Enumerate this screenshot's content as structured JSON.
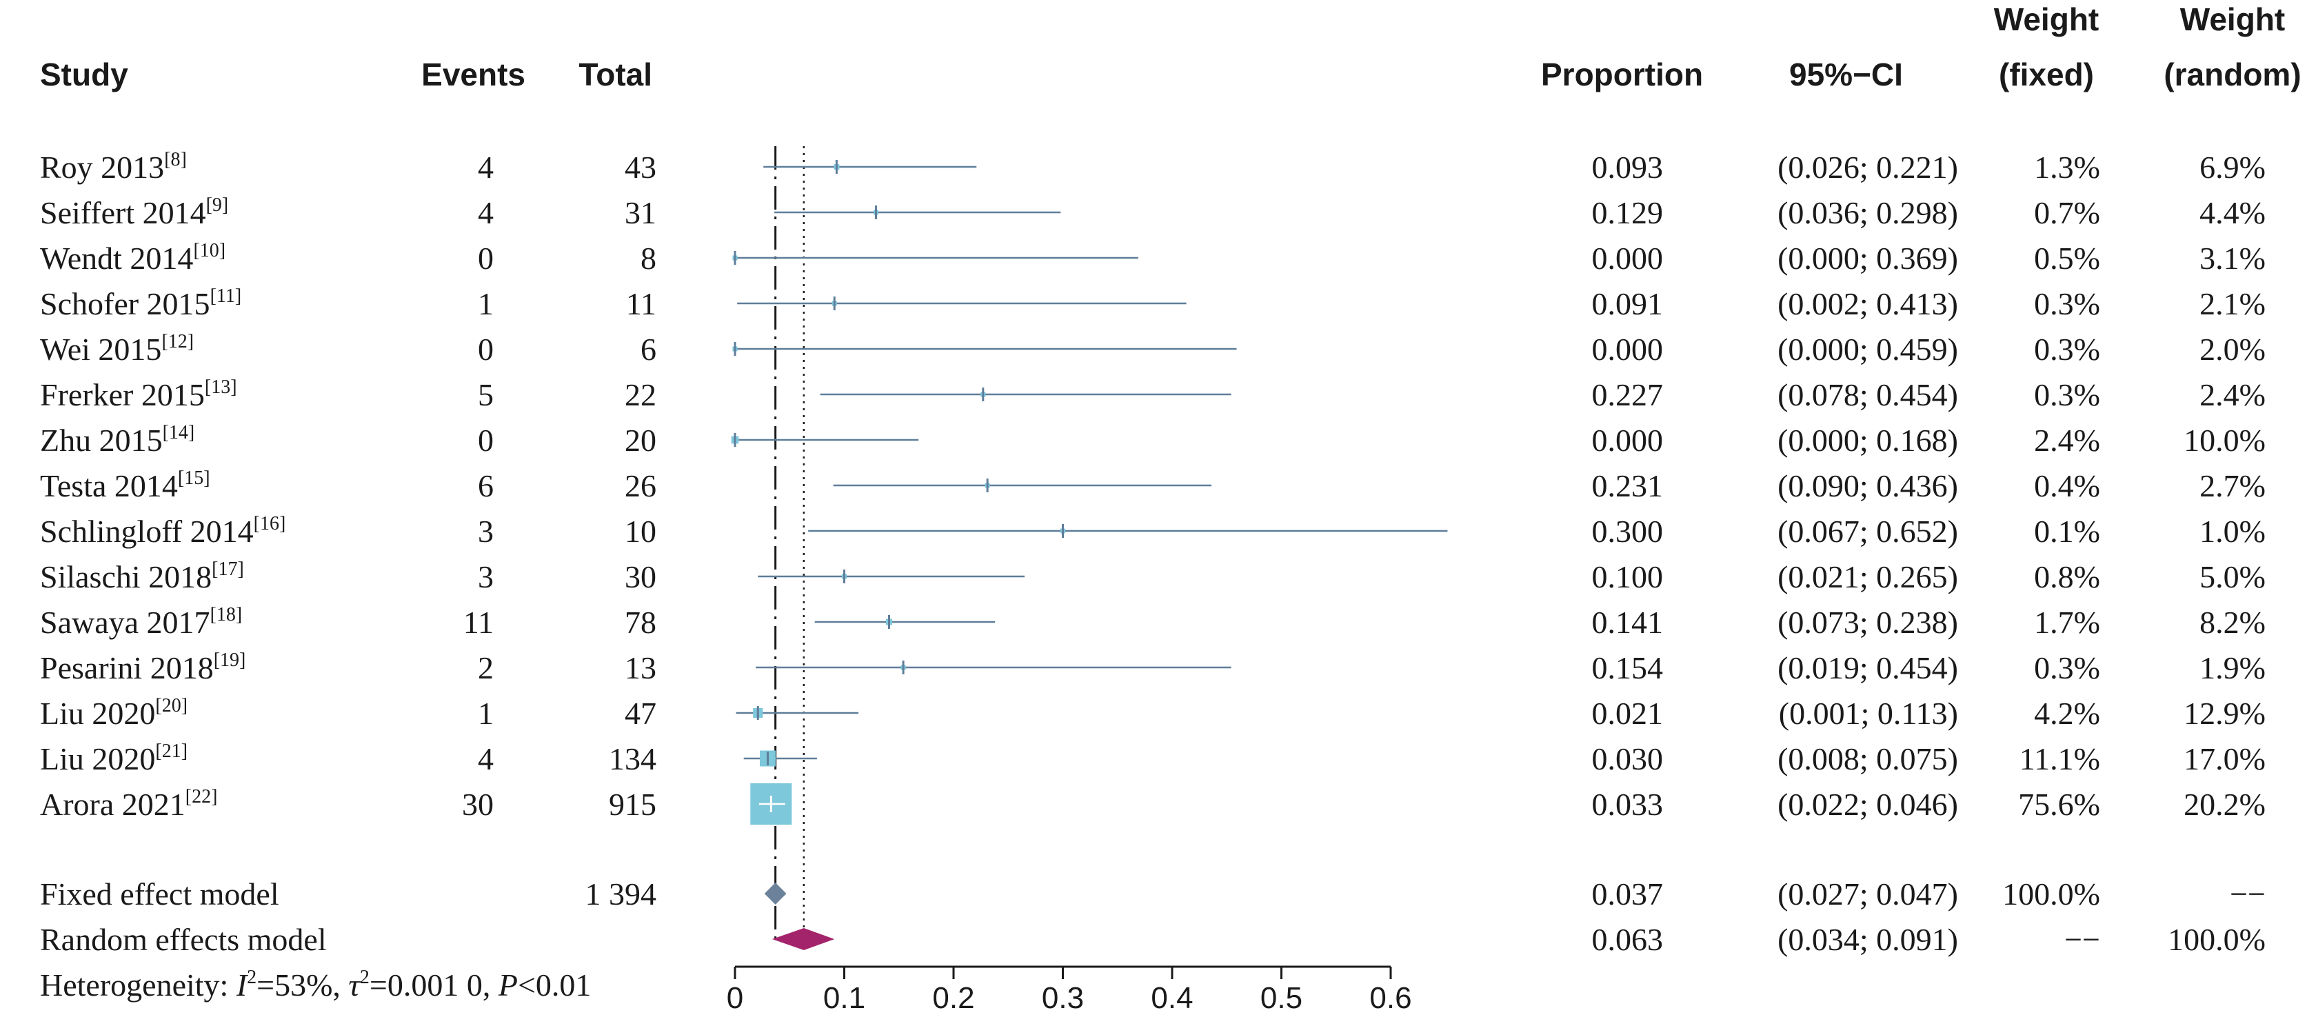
{
  "headers": {
    "study": "Study",
    "events": "Events",
    "total": "Total",
    "proportion": "Proportion",
    "ci": "95%−CI",
    "weight_fixed_1": "Weight",
    "weight_fixed_2": "(fixed)",
    "weight_random_1": "Weight",
    "weight_random_2": "(random)"
  },
  "studies": [
    {
      "name": "Roy 2013",
      "ref": "[8]",
      "events": "4",
      "total": "43",
      "proportion": "0.093",
      "ci": "(0.026; 0.221)",
      "w_fixed": "1.3%",
      "w_random": "6.9%"
    },
    {
      "name": "Seiffert 2014",
      "ref": "[9]",
      "events": "4",
      "total": "31",
      "proportion": "0.129",
      "ci": "(0.036; 0.298)",
      "w_fixed": "0.7%",
      "w_random": "4.4%"
    },
    {
      "name": "Wendt 2014",
      "ref": "[10]",
      "events": "0",
      "total": "8",
      "proportion": "0.000",
      "ci": "(0.000; 0.369)",
      "w_fixed": "0.5%",
      "w_random": "3.1%"
    },
    {
      "name": "Schofer 2015",
      "ref": "[11]",
      "events": "1",
      "total": "11",
      "proportion": "0.091",
      "ci": "(0.002; 0.413)",
      "w_fixed": "0.3%",
      "w_random": "2.1%"
    },
    {
      "name": "Wei 2015",
      "ref": "[12]",
      "events": "0",
      "total": "6",
      "proportion": "0.000",
      "ci": "(0.000; 0.459)",
      "w_fixed": "0.3%",
      "w_random": "2.0%"
    },
    {
      "name": "Frerker 2015",
      "ref": "[13]",
      "events": "5",
      "total": "22",
      "proportion": "0.227",
      "ci": "(0.078; 0.454)",
      "w_fixed": "0.3%",
      "w_random": "2.4%"
    },
    {
      "name": "Zhu 2015",
      "ref": "[14]",
      "events": "0",
      "total": "20",
      "proportion": "0.000",
      "ci": "(0.000; 0.168)",
      "w_fixed": "2.4%",
      "w_random": "10.0%"
    },
    {
      "name": "Testa 2014",
      "ref": "[15]",
      "events": "6",
      "total": "26",
      "proportion": "0.231",
      "ci": "(0.090; 0.436)",
      "w_fixed": "0.4%",
      "w_random": "2.7%"
    },
    {
      "name": "Schlingloff 2014",
      "ref": "[16]",
      "events": "3",
      "total": "10",
      "proportion": "0.300",
      "ci": "(0.067; 0.652)",
      "w_fixed": "0.1%",
      "w_random": "1.0%"
    },
    {
      "name": "Silaschi 2018",
      "ref": "[17]",
      "events": "3",
      "total": "30",
      "proportion": "0.100",
      "ci": "(0.021; 0.265)",
      "w_fixed": "0.8%",
      "w_random": "5.0%"
    },
    {
      "name": "Sawaya 2017",
      "ref": "[18]",
      "events": "11",
      "total": "78",
      "proportion": "0.141",
      "ci": "(0.073; 0.238)",
      "w_fixed": "1.7%",
      "w_random": "8.2%"
    },
    {
      "name": "Pesarini 2018",
      "ref": "[19]",
      "events": "2",
      "total": "13",
      "proportion": "0.154",
      "ci": "(0.019; 0.454)",
      "w_fixed": "0.3%",
      "w_random": "1.9%"
    },
    {
      "name": "Liu 2020",
      "ref": "[20]",
      "events": "1",
      "total": "47",
      "proportion": "0.021",
      "ci": "(0.001; 0.113)",
      "w_fixed": "4.2%",
      "w_random": "12.9%"
    },
    {
      "name": "Liu 2020",
      "ref": "[21]",
      "events": "4",
      "total": "134",
      "proportion": "0.030",
      "ci": "(0.008; 0.075)",
      "w_fixed": "11.1%",
      "w_random": "17.0%"
    },
    {
      "name": "Arora 2021",
      "ref": "[22]",
      "events": "30",
      "total": "915",
      "proportion": "0.033",
      "ci": "(0.022; 0.046)",
      "w_fixed": "75.6%",
      "w_random": "20.2%"
    }
  ],
  "fixed_model": {
    "label": "Fixed effect model",
    "total": "1 394",
    "proportion": "0.037",
    "ci": "(0.027; 0.047)",
    "w_fixed": "100.0%",
    "w_random": "−−"
  },
  "random_model": {
    "label": "Random effects model",
    "proportion": "0.063",
    "ci": "(0.034; 0.091)",
    "w_fixed": "−−",
    "w_random": "100.0%"
  },
  "heterogeneity": {
    "prefix": "Heterogeneity: ",
    "i2_sym": "I",
    "i2_val": "=53%, ",
    "tau_sym": "τ",
    "tau_val": "=0.001 0, ",
    "p_sym": "P",
    "p_val": "<0.01"
  },
  "colors": {
    "ci_line": "#5f7d99",
    "study_square": "#7ec8dc",
    "fixed_diamond": "#6c829a",
    "random_diamond": "#a3246b",
    "axis": "#1a1a1a"
  },
  "chart_data": {
    "type": "forest",
    "x": [
      0.093,
      0.129,
      0.0,
      0.091,
      0.0,
      0.227,
      0.0,
      0.231,
      0.3,
      0.1,
      0.141,
      0.154,
      0.021,
      0.03,
      0.033
    ],
    "ci_low": [
      0.026,
      0.036,
      0.0,
      0.002,
      0.0,
      0.078,
      0.0,
      0.09,
      0.067,
      0.021,
      0.073,
      0.019,
      0.001,
      0.008,
      0.022
    ],
    "ci_high": [
      0.221,
      0.298,
      0.369,
      0.413,
      0.459,
      0.454,
      0.168,
      0.436,
      0.652,
      0.265,
      0.238,
      0.454,
      0.113,
      0.075,
      0.046
    ],
    "weight_fixed": [
      1.3,
      0.7,
      0.5,
      0.3,
      0.3,
      0.3,
      2.4,
      0.4,
      0.1,
      0.8,
      1.7,
      0.3,
      4.2,
      11.1,
      75.6
    ],
    "fixed_estimate": {
      "value": 0.037,
      "ci": [
        0.027,
        0.047
      ]
    },
    "random_estimate": {
      "value": 0.063,
      "ci": [
        0.034,
        0.091
      ]
    },
    "xlim": [
      0,
      0.6
    ],
    "xticks": [
      "0",
      "0.1",
      "0.2",
      "0.3",
      "0.4",
      "0.5",
      "0.6"
    ]
  }
}
